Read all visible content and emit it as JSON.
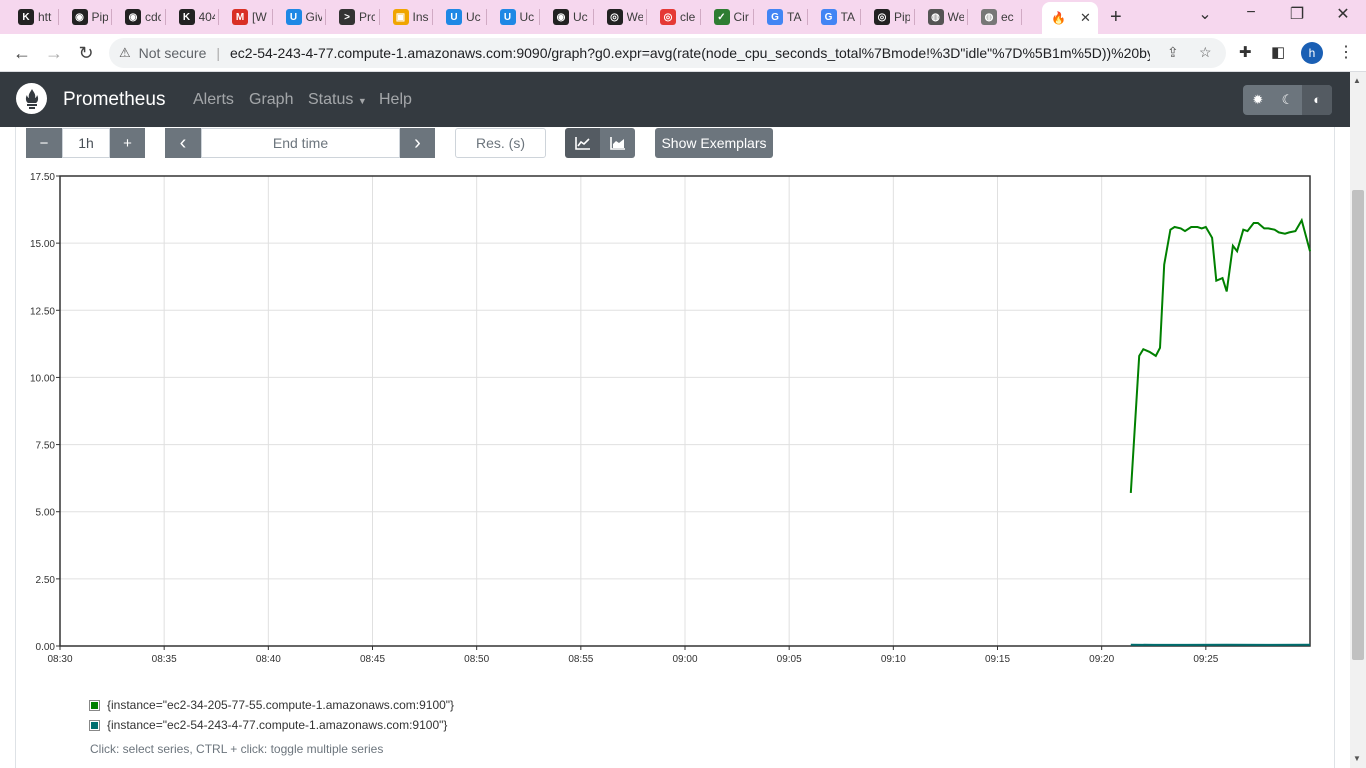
{
  "browser": {
    "tabs": [
      {
        "label": "htt",
        "icon": "k-icon",
        "color": "#222222",
        "glyph": "K"
      },
      {
        "label": "Pip",
        "icon": "github-icon",
        "color": "#222222",
        "glyph": "◉"
      },
      {
        "label": "cdc",
        "icon": "github-icon",
        "color": "#222222",
        "glyph": "◉"
      },
      {
        "label": "404",
        "icon": "k-icon",
        "color": "#222222",
        "glyph": "K"
      },
      {
        "label": "[W",
        "icon": "gmail-icon",
        "color": "#d93025",
        "glyph": "M"
      },
      {
        "label": "Giv",
        "icon": "udemy-icon",
        "color": "#1e88e5",
        "glyph": "U"
      },
      {
        "label": "Prc",
        "icon": "terminal-icon",
        "color": "#333333",
        "glyph": ">"
      },
      {
        "label": "Ins",
        "icon": "box-icon",
        "color": "#f0a500",
        "glyph": "▣"
      },
      {
        "label": "Uc",
        "icon": "udemy-icon",
        "color": "#1e88e5",
        "glyph": "U"
      },
      {
        "label": "Uc",
        "icon": "udemy-icon",
        "color": "#1e88e5",
        "glyph": "U"
      },
      {
        "label": "Uc",
        "icon": "github-icon",
        "color": "#222222",
        "glyph": "◉"
      },
      {
        "label": "We",
        "icon": "circle-icon",
        "color": "#222222",
        "glyph": "◎"
      },
      {
        "label": "cle",
        "icon": "circle-icon",
        "color": "#e53935",
        "glyph": "◎"
      },
      {
        "label": "Cir",
        "icon": "check-icon",
        "color": "#2e7d32",
        "glyph": "✓"
      },
      {
        "label": "TA",
        "icon": "google-icon",
        "color": "#4285f4",
        "glyph": "G"
      },
      {
        "label": "TA",
        "icon": "google-icon",
        "color": "#4285f4",
        "glyph": "G"
      },
      {
        "label": "Pip",
        "icon": "circle-icon",
        "color": "#222222",
        "glyph": "◎"
      },
      {
        "label": "We",
        "icon": "globe-icon",
        "color": "#555555",
        "glyph": "◍"
      },
      {
        "label": "ec",
        "icon": "globe-icon",
        "color": "#777777",
        "glyph": "◍"
      }
    ],
    "active_tab_icon": "prometheus-flame-icon",
    "address": {
      "security": "Not secure",
      "url": "ec2-54-243-4-77.compute-1.amazonaws.com:9090/graph?g0.expr=avg(rate(node_cpu_seconds_total%7Bmode!%3D\"idle\"%7D%5B1m%5D))%20by%..."
    },
    "profile_initial": "h"
  },
  "app": {
    "brand": "Prometheus",
    "nav": {
      "alerts": "Alerts",
      "graph": "Graph",
      "status": "Status",
      "help": "Help"
    }
  },
  "controls": {
    "range_minus": "−",
    "range_value": "1h",
    "range_plus": "+",
    "prev": "‹",
    "end_time_placeholder": "End time",
    "next": "›",
    "resolution_placeholder": "Res. (s)",
    "show_exemplars": "Show Exemplars"
  },
  "legend": [
    {
      "label": "{instance=\"ec2-34-205-77-55.compute-1.amazonaws.com:9100\"}",
      "color": "#008000"
    },
    {
      "label": "{instance=\"ec2-54-243-4-77.compute-1.amazonaws.com:9100\"}",
      "color": "#006e6e"
    }
  ],
  "hint": "Click: select series, CTRL + click: toggle multiple series",
  "chart_data": {
    "type": "line",
    "x_ticks": [
      "08:30",
      "08:35",
      "08:40",
      "08:45",
      "08:50",
      "08:55",
      "09:00",
      "09:05",
      "09:10",
      "09:15",
      "09:20",
      "09:25"
    ],
    "y_ticks": [
      "0.00",
      "2.50",
      "5.00",
      "7.50",
      "10.00",
      "12.50",
      "15.00",
      "17.50"
    ],
    "xlim_minutes": [
      510,
      570
    ],
    "ylim": [
      0,
      17.5
    ],
    "series": [
      {
        "name": "{instance=\"ec2-34-205-77-55.compute-1.amazonaws.com:9100\"}",
        "color": "#008000",
        "x_minutes": [
          561.4,
          561.8,
          562.0,
          562.3,
          562.6,
          562.8,
          563.0,
          563.3,
          563.5,
          563.8,
          564.0,
          564.3,
          564.6,
          564.8,
          565.0,
          565.3,
          565.5,
          565.8,
          566.0,
          566.3,
          566.5,
          566.8,
          567.0,
          567.3,
          567.5,
          567.8,
          568.0,
          568.3,
          568.5,
          568.8,
          569.0,
          569.3,
          569.6,
          570.0
        ],
        "y": [
          5.7,
          10.8,
          11.05,
          10.95,
          10.8,
          11.1,
          14.2,
          15.5,
          15.6,
          15.55,
          15.45,
          15.6,
          15.6,
          15.55,
          15.6,
          15.2,
          13.6,
          13.7,
          13.2,
          14.9,
          14.7,
          15.5,
          15.45,
          15.75,
          15.75,
          15.55,
          15.55,
          15.5,
          15.4,
          15.35,
          15.4,
          15.45,
          15.85,
          14.7
        ]
      },
      {
        "name": "{instance=\"ec2-54-243-4-77.compute-1.amazonaws.com:9100\"}",
        "color": "#006e6e",
        "x_minutes": [
          561.4,
          562.5,
          564.0,
          566.0,
          568.0,
          570.0
        ],
        "y": [
          0.05,
          0.04,
          0.04,
          0.05,
          0.04,
          0.05
        ]
      }
    ]
  }
}
